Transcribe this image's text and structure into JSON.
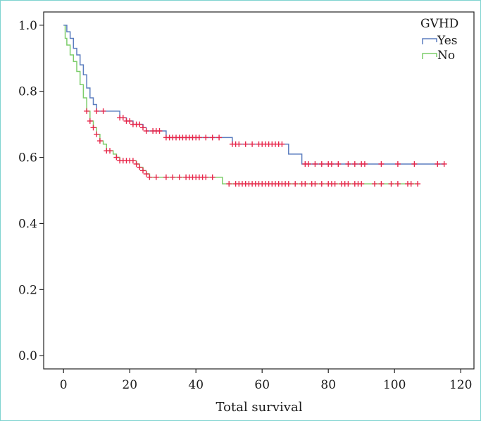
{
  "chart_data": {
    "type": "line",
    "title": "",
    "xlabel": "Total survival",
    "ylabel": "",
    "xlim": [
      -6,
      124
    ],
    "ylim": [
      -0.04,
      1.04
    ],
    "xticks": [
      0,
      20,
      40,
      60,
      80,
      100,
      120
    ],
    "yticks": [
      0.0,
      0.2,
      0.4,
      0.6,
      0.8,
      1.0
    ],
    "xtick_labels": [
      "0",
      "20",
      "40",
      "60",
      "80",
      "100",
      "120"
    ],
    "ytick_labels": [
      "0.0",
      "0.2",
      "0.4",
      "0.6",
      "0.8",
      "1.0"
    ],
    "grid": false,
    "legend": {
      "title": "GVHD",
      "position": "top-right",
      "entries": [
        "Yes",
        "No"
      ]
    },
    "censor_color": "#e8274b",
    "series": [
      {
        "name": "Yes",
        "color": "#5b7dbf",
        "steps": [
          [
            0,
            1.0
          ],
          [
            1,
            0.98
          ],
          [
            2,
            0.96
          ],
          [
            3,
            0.93
          ],
          [
            4,
            0.91
          ],
          [
            5,
            0.88
          ],
          [
            6,
            0.85
          ],
          [
            7,
            0.81
          ],
          [
            8,
            0.78
          ],
          [
            9,
            0.76
          ],
          [
            10,
            0.74
          ],
          [
            12,
            0.74
          ],
          [
            17,
            0.72
          ],
          [
            19,
            0.71
          ],
          [
            21,
            0.7
          ],
          [
            24,
            0.69
          ],
          [
            25,
            0.68
          ],
          [
            30,
            0.68
          ],
          [
            31,
            0.66
          ],
          [
            50,
            0.66
          ],
          [
            51,
            0.64
          ],
          [
            67,
            0.64
          ],
          [
            68,
            0.61
          ],
          [
            71,
            0.61
          ],
          [
            72,
            0.58
          ],
          [
            115,
            0.58
          ]
        ],
        "censor_times": [
          10,
          12,
          17,
          18,
          19,
          20,
          21,
          22,
          23,
          24,
          25,
          27,
          28,
          29,
          31,
          32,
          33,
          34,
          35,
          36,
          37,
          38,
          39,
          40,
          41,
          43,
          45,
          47,
          51,
          52,
          53,
          55,
          57,
          59,
          60,
          61,
          62,
          63,
          64,
          65,
          66,
          73,
          74,
          76,
          78,
          80,
          81,
          83,
          86,
          88,
          90,
          91,
          96,
          101,
          106,
          113,
          115
        ]
      },
      {
        "name": "No",
        "color": "#7ccd6a",
        "steps": [
          [
            0,
            1.0
          ],
          [
            0.5,
            0.96
          ],
          [
            1,
            0.94
          ],
          [
            2,
            0.91
          ],
          [
            3,
            0.89
          ],
          [
            4,
            0.86
          ],
          [
            5,
            0.82
          ],
          [
            6,
            0.78
          ],
          [
            7,
            0.74
          ],
          [
            8,
            0.71
          ],
          [
            9,
            0.69
          ],
          [
            10,
            0.67
          ],
          [
            11,
            0.65
          ],
          [
            12,
            0.64
          ],
          [
            13,
            0.62
          ],
          [
            15,
            0.61
          ],
          [
            16,
            0.6
          ],
          [
            17,
            0.59
          ],
          [
            22,
            0.58
          ],
          [
            23,
            0.57
          ],
          [
            24,
            0.56
          ],
          [
            25,
            0.55
          ],
          [
            26,
            0.54
          ],
          [
            47,
            0.54
          ],
          [
            48,
            0.52
          ],
          [
            107,
            0.52
          ]
        ],
        "censor_times": [
          7,
          8,
          9,
          10,
          11,
          13,
          14,
          16,
          17,
          18,
          19,
          20,
          21,
          22,
          23,
          24,
          25,
          26,
          28,
          31,
          33,
          35,
          37,
          38,
          39,
          40,
          41,
          42,
          43,
          45,
          50,
          52,
          53,
          54,
          55,
          56,
          57,
          58,
          59,
          60,
          61,
          62,
          63,
          64,
          65,
          66,
          67,
          68,
          70,
          72,
          73,
          75,
          76,
          78,
          80,
          81,
          82,
          84,
          85,
          86,
          88,
          89,
          90,
          94,
          96,
          99,
          101,
          104,
          105,
          107
        ]
      }
    ]
  }
}
